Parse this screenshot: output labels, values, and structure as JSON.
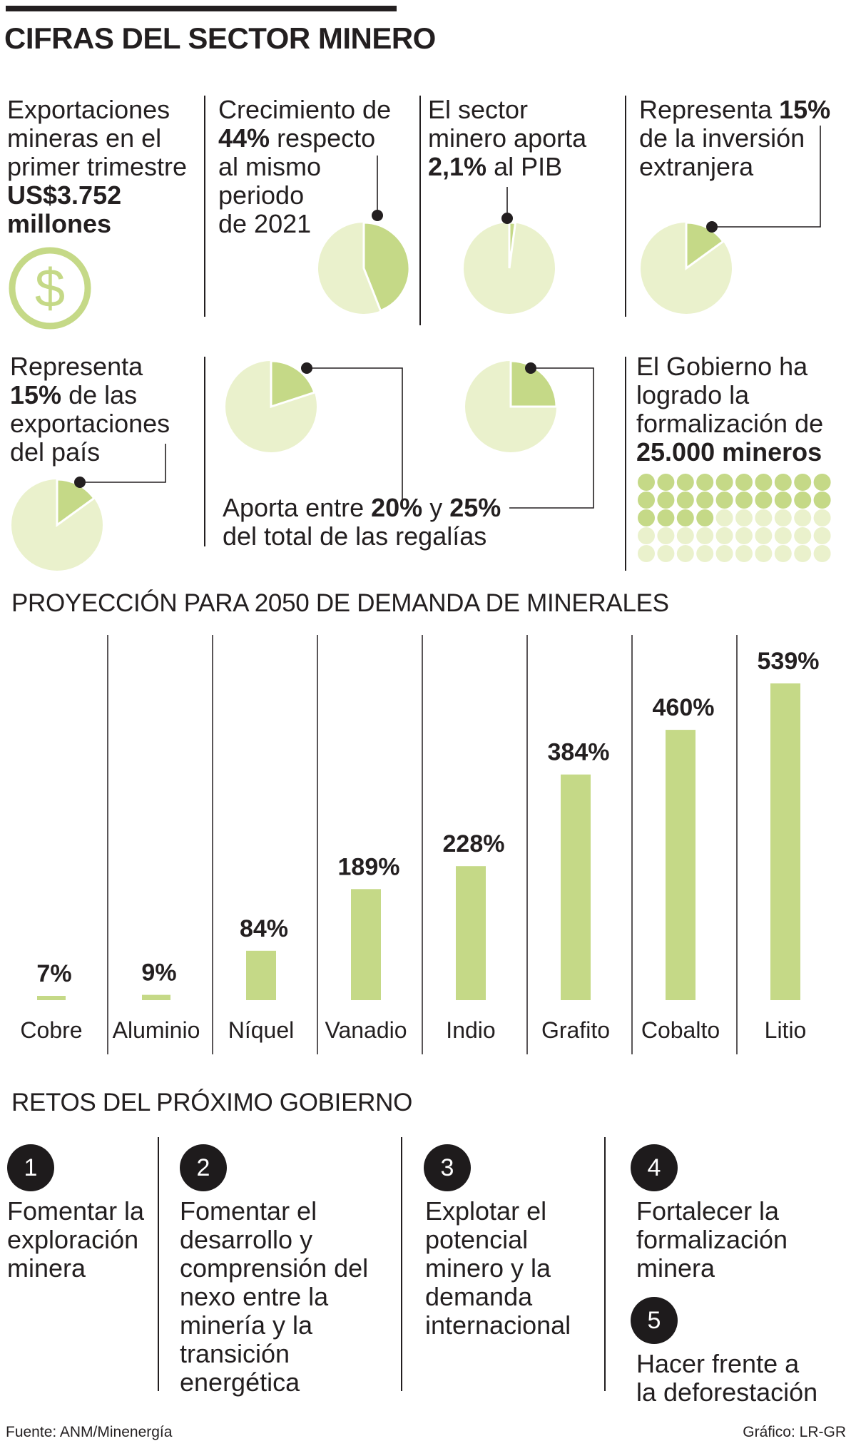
{
  "title": "CIFRAS DEL SECTOR MINERO",
  "colors": {
    "accent": "#c5d987",
    "light": "#eaf1cc",
    "dark": "#231f20"
  },
  "stats": {
    "exports": {
      "line1": "Exportaciones",
      "line2": "mineras en el",
      "line3": "primer trimestre",
      "value1": "US$3.752",
      "value2": "millones",
      "icon": "dollar-icon"
    },
    "growth": {
      "line1": "Crecimiento de",
      "value": "44%",
      "rest": " respecto",
      "line3": "al mismo",
      "line4": "periodo",
      "line5": "de 2021",
      "percent": 44
    },
    "gdp": {
      "line1": "El sector",
      "line2": "minero aporta",
      "value": "2,1%",
      "rest": " al PIB",
      "percent": 2.1
    },
    "investment": {
      "pre": "Representa ",
      "value": "15%",
      "line2": "de la inversión",
      "line3": "extranjera",
      "percent": 15
    },
    "exports_share": {
      "line1": "Representa",
      "value": "15%",
      "rest": " de las",
      "line3": "exportaciones",
      "line4": "del país",
      "percent": 15
    },
    "royalties": {
      "pre": "Aporta entre ",
      "value1": "20%",
      "mid": " y ",
      "value2": "25%",
      "line2": "del total de las regalías",
      "percent_low": 20,
      "percent_high": 25
    },
    "formalization": {
      "line1": "El Gobierno ha",
      "line2": "logrado la",
      "line3": "formalización de",
      "value": "25.000 mineros",
      "dots_total": 50,
      "dots_highlighted": 24
    }
  },
  "projection_title": "PROYECCIÓN PARA 2050 DE DEMANDA DE MINERALES",
  "chart_data": {
    "type": "bar",
    "title": "PROYECCIÓN PARA 2050 DE DEMANDA DE MINERALES",
    "categories": [
      "Cobre",
      "Aluminio",
      "Níquel",
      "Vanadio",
      "Indio",
      "Grafito",
      "Cobalto",
      "Litio"
    ],
    "values": [
      7,
      9,
      84,
      189,
      228,
      384,
      460,
      539
    ],
    "labels": [
      "7%",
      "9%",
      "84%",
      "189%",
      "228%",
      "384%",
      "460%",
      "539%"
    ],
    "unit": "%",
    "ylim": [
      0,
      539
    ],
    "xlabel": "",
    "ylabel": ""
  },
  "challenges_title": "RETOS DEL PRÓXIMO GOBIERNO",
  "challenges": [
    {
      "num": "1",
      "lines": [
        "Fomentar la",
        "exploración",
        "minera"
      ]
    },
    {
      "num": "2",
      "lines": [
        "Fomentar el",
        "desarrollo y",
        "comprensión del",
        "nexo entre la",
        "minería y la",
        "transición",
        "energética"
      ]
    },
    {
      "num": "3",
      "lines": [
        "Explotar el",
        "potencial",
        "minero y la",
        "demanda",
        "internacional"
      ]
    },
    {
      "num": "4",
      "lines": [
        "Fortalecer la",
        "formalización",
        "minera"
      ]
    },
    {
      "num": "5",
      "lines": [
        "Hacer frente a",
        "la deforestación"
      ]
    }
  ],
  "footer": {
    "source": "Fuente: ANM/Minenergía",
    "credit": "Gráfico: LR-GR"
  }
}
